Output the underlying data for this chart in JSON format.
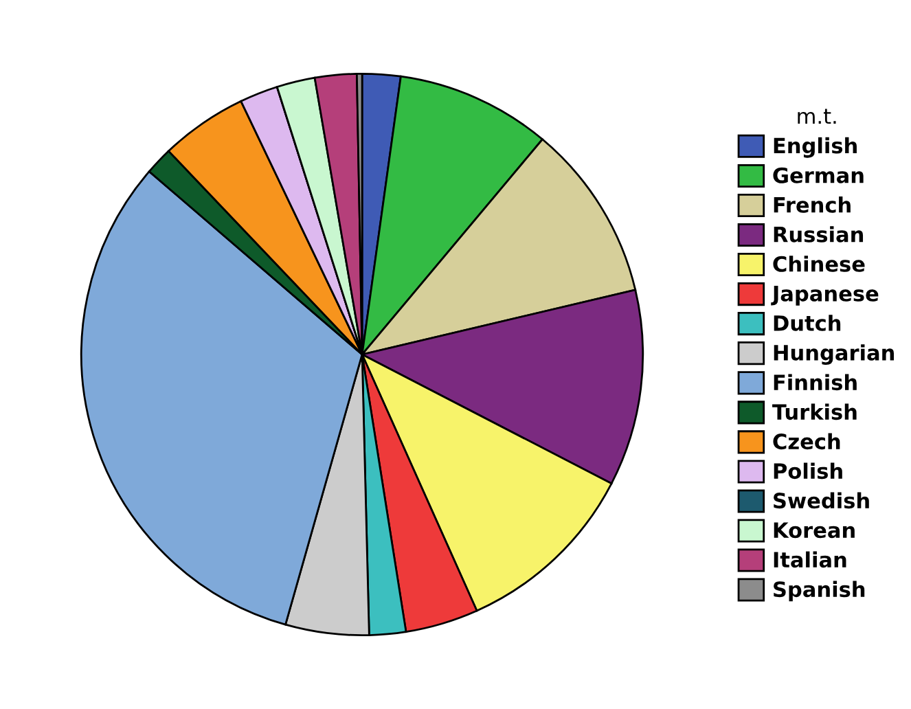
{
  "chart_data": {
    "type": "pie",
    "legend_title": "m.t.",
    "legend": "right",
    "categories": [
      "English",
      "German",
      "French",
      "Russian",
      "Chinese",
      "Japanese",
      "Dutch",
      "Hungarian",
      "Finnish",
      "Turkish",
      "Czech",
      "Polish",
      "Swedish",
      "Korean",
      "Italian",
      "Spanish"
    ],
    "values": [
      2.2,
      8.9,
      10.2,
      11.3,
      10.7,
      4.2,
      2.1,
      4.8,
      31.9,
      1.6,
      5.0,
      2.2,
      0,
      2.2,
      2.4,
      0.3
    ],
    "colors": [
      "#3f5bb5",
      "#33bb44",
      "#d6cf9a",
      "#7b2a80",
      "#f7f36a",
      "#ee3a3a",
      "#3cbfbf",
      "#cccccc",
      "#7fa9d9",
      "#0e5a2a",
      "#f7941d",
      "#ddb9ef",
      "#1d5a6e",
      "#c9f7d0",
      "#b53f7a",
      "#8c8c8c"
    ]
  }
}
